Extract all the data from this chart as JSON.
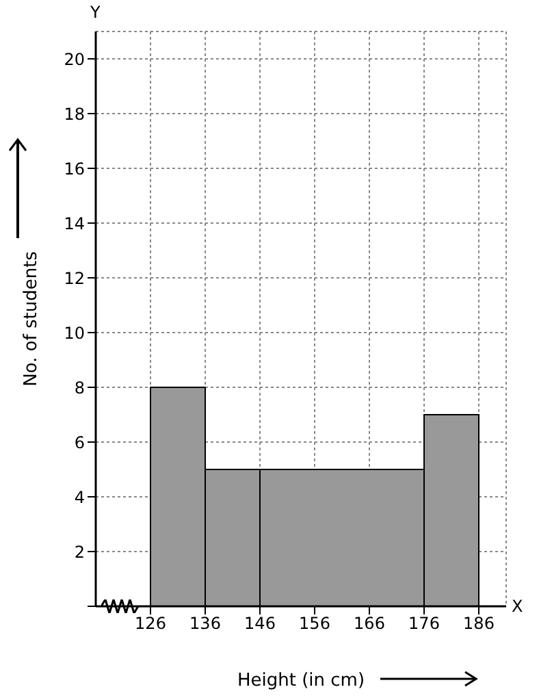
{
  "chart_data": {
    "type": "histogram",
    "xlabel": "Height (in cm)",
    "ylabel": "No. of students",
    "bins": [
      126,
      136,
      146,
      176,
      186
    ],
    "values": [
      8,
      5,
      5,
      7
    ],
    "color": "#999999",
    "xlim": [
      116,
      191
    ],
    "ylim": [
      0,
      21
    ],
    "xticks": [
      126,
      136,
      146,
      156,
      166,
      176,
      186
    ],
    "yticks": [
      {
        "value": 0,
        "label": null
      },
      2,
      4,
      6,
      8,
      10,
      12,
      14,
      16,
      18,
      20
    ],
    "grid": true,
    "annotations": [
      "X",
      "Y"
    ]
  }
}
